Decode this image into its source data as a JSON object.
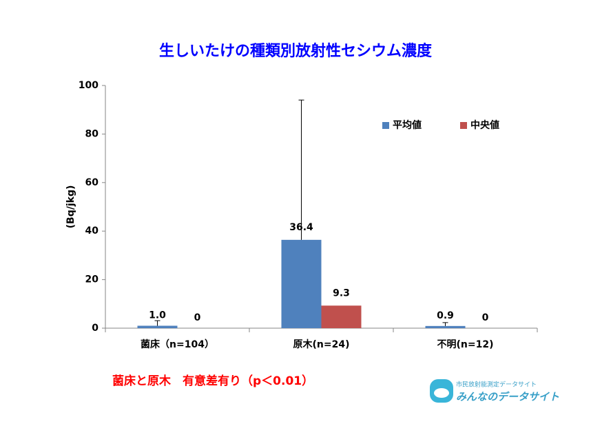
{
  "chart_data": {
    "type": "bar",
    "title": "生しいたけの種類別放射性セシウム濃度",
    "y_label": "(Bq/jkg)",
    "categories": [
      "菌床（n=104）",
      "原木(n=24)",
      "不明(n=12)"
    ],
    "series": [
      {
        "name": "平均値",
        "color": "#4f81bd",
        "values": [
          1.0,
          36.4,
          0.9
        ],
        "value_labels": [
          "1.0",
          "36.4",
          "0.9"
        ],
        "errors": [
          2.1,
          57.6,
          1.4
        ]
      },
      {
        "name": "中央値",
        "color": "#c0504d",
        "values": [
          0,
          9.3,
          0
        ]
      }
    ],
    "ylim": [
      0,
      100
    ],
    "yticks": [
      0,
      20,
      40,
      60,
      80,
      100
    ],
    "grid": false,
    "legend": "upper right",
    "annotation": "菌床と原木　有意差有り（p＜0.01）",
    "source_logo": {
      "line1": "市民放射能測定データサイト",
      "line2": "みんなのデータサイト"
    }
  }
}
